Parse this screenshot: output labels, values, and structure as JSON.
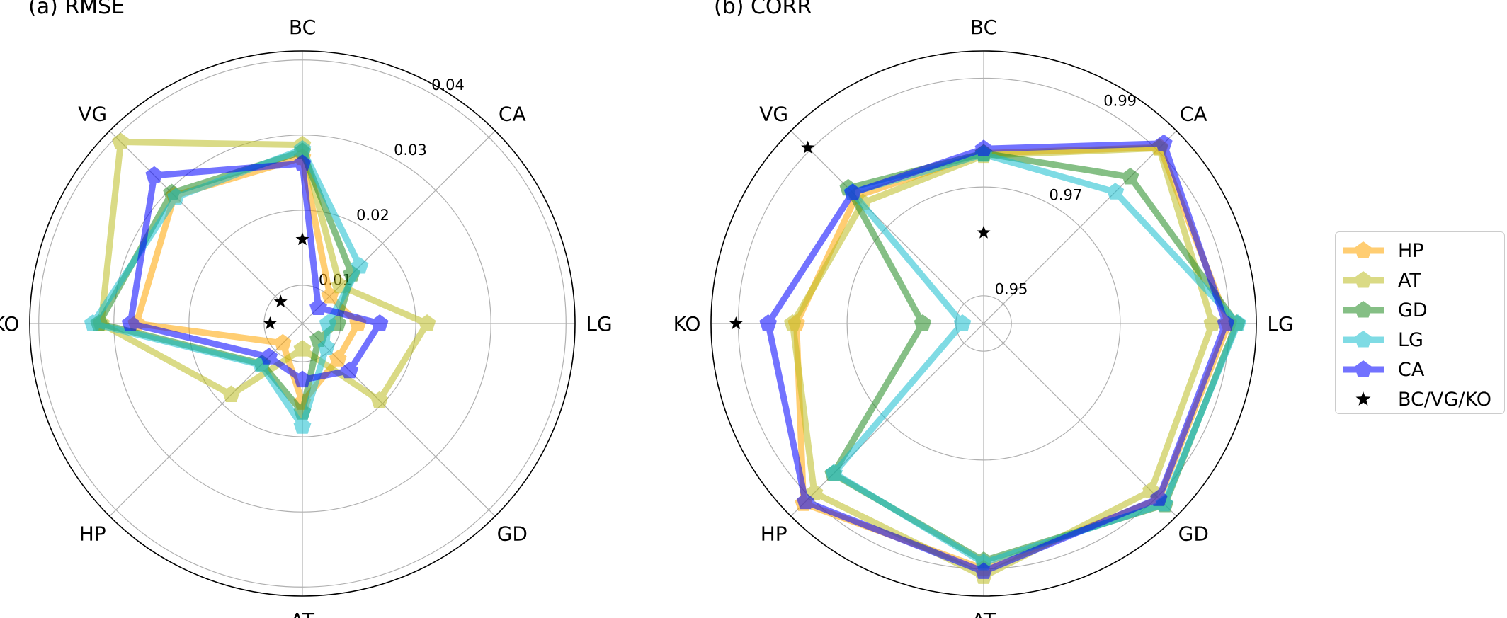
{
  "chart_data": [
    {
      "type": "radar",
      "title": "(a) RMSE",
      "categories": [
        "BC",
        "CA",
        "LG",
        "GD",
        "AT",
        "HP",
        "KO",
        "VG"
      ],
      "ylim": [
        0.0049,
        0.0412
      ],
      "rticks": [
        0.01,
        0.02,
        0.03,
        0.04
      ],
      "rtick_labels": [
        "0.01",
        "0.02",
        "0.03",
        "0.04"
      ],
      "grid": true,
      "series": [
        {
          "name": "HP",
          "values": [
            0.027,
            0.0101,
            0.0123,
            0.0116,
            0.0154,
            0.0086,
            0.027,
            0.029
          ]
        },
        {
          "name": "AT",
          "values": [
            0.0287,
            0.012,
            0.0215,
            0.0194,
            0.0083,
            0.0183,
            0.0317,
            0.0391
          ]
        },
        {
          "name": "GD",
          "values": [
            0.0278,
            0.0142,
            0.0096,
            0.0079,
            0.0167,
            0.0125,
            0.032,
            0.0295
          ]
        },
        {
          "name": "LG",
          "values": [
            0.0281,
            0.0157,
            0.0083,
            0.0094,
            0.0186,
            0.0127,
            0.0328,
            0.0287
          ]
        },
        {
          "name": "CA",
          "values": [
            0.0262,
            0.0079,
            0.0152,
            0.0138,
            0.0124,
            0.0112,
            0.0278,
            0.0328
          ]
        }
      ],
      "reference": {
        "name": "BC/VG/KO",
        "points": [
          {
            "category": "BC",
            "value": 0.0161
          },
          {
            "category": "VG",
            "value": 0.009
          },
          {
            "category": "KO",
            "value": 0.0092
          }
        ]
      }
    },
    {
      "type": "radar",
      "title": "(b) CORR",
      "categories": [
        "BC",
        "CA",
        "LG",
        "GD",
        "AT",
        "HP",
        "KO",
        "VG"
      ],
      "ylim": [
        0.9449,
        0.995
      ],
      "rticks": [
        0.95,
        0.97,
        0.99
      ],
      "rtick_labels": [
        "0.95",
        "0.97",
        "0.99"
      ],
      "grid": true,
      "series": [
        {
          "name": "HP",
          "values": [
            0.9762,
            0.9907,
            0.9899,
            0.9905,
            0.99,
            0.9917,
            0.9793,
            0.978
          ]
        },
        {
          "name": "AT",
          "values": [
            0.9758,
            0.9905,
            0.9869,
            0.9884,
            0.9914,
            0.9889,
            0.98,
            0.9763
          ]
        },
        {
          "name": "GD",
          "values": [
            0.9762,
            0.983,
            0.9914,
            0.992,
            0.9885,
            0.984,
            0.9561,
            0.9801
          ]
        },
        {
          "name": "LG",
          "values": [
            0.976,
            0.9791,
            0.9916,
            0.9918,
            0.9889,
            0.9838,
            0.9488,
            0.979
          ]
        },
        {
          "name": "CA",
          "values": [
            0.977,
            0.9917,
            0.9894,
            0.9904,
            0.9905,
            0.9912,
            0.9845,
            0.9789
          ]
        }
      ],
      "reference": {
        "name": "BC/VG/KO",
        "points": [
          {
            "category": "BC",
            "value": 0.9616
          },
          {
            "category": "VG",
            "value": 0.9906
          },
          {
            "category": "KO",
            "value": 0.9904
          }
        ]
      }
    }
  ],
  "legend": {
    "placement": "right",
    "items": [
      {
        "label": "HP",
        "color": "#FFA500"
      },
      {
        "label": "AT",
        "color": "#BCBD22"
      },
      {
        "label": "GD",
        "color": "#228B22"
      },
      {
        "label": "LG",
        "color": "#17BECF"
      },
      {
        "label": "CA",
        "color": "#0000FF"
      },
      {
        "label": "BC/VG/KO",
        "color": "#000000",
        "marker": "star"
      }
    ]
  }
}
